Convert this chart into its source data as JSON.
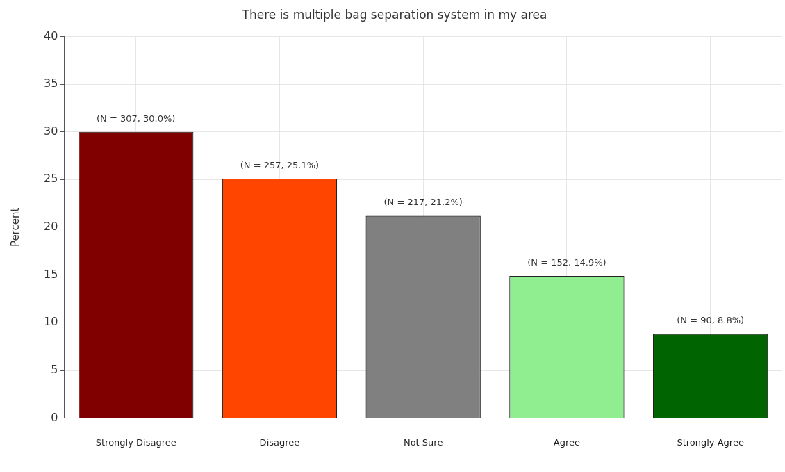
{
  "chart_data": {
    "type": "bar",
    "title": "There is multiple bag separation system in my area",
    "ylabel": "Percent",
    "categories": [
      "Strongly Disagree",
      "Disagree",
      "Not Sure",
      "Agree",
      "Strongly Agree"
    ],
    "values": [
      30.0,
      25.1,
      21.2,
      14.9,
      8.8
    ],
    "colors": [
      "#800000",
      "#ff4500",
      "#808080",
      "#90ee90",
      "#006400"
    ],
    "value_labels": [
      "(N = 307, 30.0%)",
      "(N = 257, 25.1%)",
      "(N = 217, 21.2%)",
      "(N = 152, 14.9%)",
      "(N = 90, 8.8%)"
    ],
    "ylim": [
      0,
      40
    ],
    "yticks": [
      0,
      5,
      10,
      15,
      20,
      25,
      30,
      35,
      40
    ],
    "grid": true,
    "legend": false
  }
}
